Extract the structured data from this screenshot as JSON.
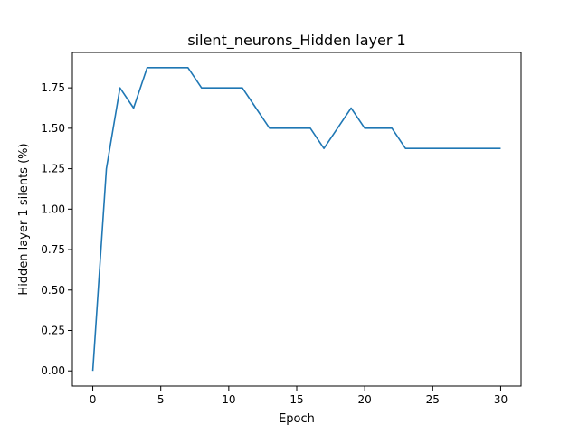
{
  "chart_data": {
    "type": "line",
    "title": "silent_neurons_Hidden layer 1",
    "xlabel": "Epoch",
    "ylabel": "Hidden layer 1 silents (%)",
    "x": [
      0,
      1,
      2,
      3,
      4,
      5,
      6,
      7,
      8,
      9,
      10,
      11,
      12,
      13,
      14,
      15,
      16,
      17,
      18,
      19,
      20,
      21,
      22,
      23,
      24,
      25,
      26,
      27,
      28,
      29,
      30
    ],
    "series": [
      {
        "values": [
          0.0,
          1.25,
          1.75,
          1.625,
          1.875,
          1.875,
          1.875,
          1.875,
          1.75,
          1.75,
          1.75,
          1.75,
          1.625,
          1.5,
          1.5,
          1.5,
          1.5,
          1.375,
          1.5,
          1.625,
          1.5,
          1.5,
          1.5,
          1.375,
          1.375,
          1.375,
          1.375,
          1.375,
          1.375,
          1.375,
          1.375
        ],
        "color": "#1f77b4"
      }
    ],
    "xlim": [
      -1.5,
      31.5
    ],
    "ylim": [
      -0.09375,
      1.96875
    ],
    "xticks": [
      0,
      5,
      10,
      15,
      20,
      25,
      30
    ],
    "xtick_labels": [
      "0",
      "5",
      "10",
      "15",
      "20",
      "25",
      "30"
    ],
    "yticks": [
      0.0,
      0.25,
      0.5,
      0.75,
      1.0,
      1.25,
      1.5,
      1.75
    ],
    "ytick_labels": [
      "0.00",
      "0.25",
      "0.50",
      "0.75",
      "1.00",
      "1.25",
      "1.50",
      "1.75"
    ],
    "grid": false,
    "legend": "none"
  }
}
